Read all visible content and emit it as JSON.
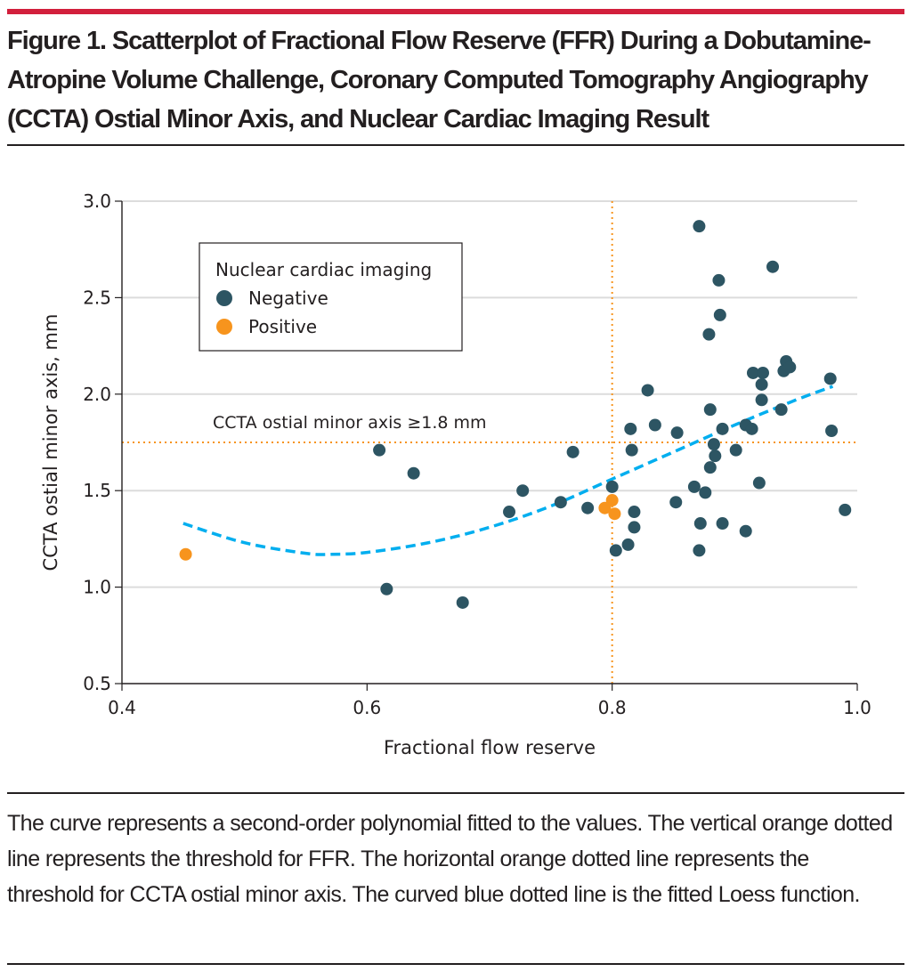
{
  "figure": {
    "title": "Figure 1. Scatterplot of Fractional Flow Reserve (FFR) During a Dobutamine-Atropine Volume Challenge, Coronary Computed Tomography Angiography (CCTA) Ostial Minor Axis, and Nuclear Cardiac Imaging Result",
    "caption": "The curve represents a second-order polynomial fitted to the values. The vertical orange dotted line represents the threshold for FFR. The horizontal orange dotted line represents the threshold for CCTA ostial minor axis. The curved blue dotted line is the fitted Loess function.",
    "accent_color": "#d21f3c"
  },
  "chart_data": {
    "type": "scatter",
    "title": "",
    "xlabel": "Fractional flow reserve",
    "ylabel": "CCTA ostial minor axis, mm",
    "xlim": [
      0.4,
      1.0
    ],
    "ylim": [
      0.5,
      3.0
    ],
    "x_ticks": [
      0.4,
      0.6,
      0.8,
      1.0
    ],
    "x_tick_labels": [
      "0.4",
      "0.6",
      "0.8",
      "1.0"
    ],
    "y_ticks": [
      0.5,
      1.0,
      1.5,
      2.0,
      2.5,
      3.0
    ],
    "y_tick_labels": [
      "0.5",
      "1.0",
      "1.5",
      "2.0",
      "2.5",
      "3.0"
    ],
    "grid": "horizontal",
    "legend": {
      "title": "Nuclear cardiac imaging",
      "placement": "top-left",
      "entries": [
        {
          "name": "Negative",
          "color": "#2d5563"
        },
        {
          "name": "Positive",
          "color": "#f7941d"
        }
      ]
    },
    "reference_lines": [
      {
        "orientation": "vertical",
        "value": 0.8,
        "color": "#f7941d",
        "style": "dotted",
        "label": ""
      },
      {
        "orientation": "horizontal",
        "value": 1.75,
        "color": "#f7941d",
        "style": "dotted",
        "label": "CCTA ostial minor axis ≥1.8 mm"
      }
    ],
    "fit_curve": {
      "name": "Loess",
      "color": "#00aeef",
      "style": "dashed",
      "x": [
        0.45,
        0.5,
        0.55,
        0.57,
        0.6,
        0.65,
        0.7,
        0.75,
        0.8,
        0.85,
        0.9,
        0.95,
        0.98
      ],
      "y": [
        1.33,
        1.23,
        1.175,
        1.17,
        1.18,
        1.23,
        1.31,
        1.42,
        1.56,
        1.7,
        1.84,
        1.97,
        2.04
      ]
    },
    "series": [
      {
        "name": "Negative",
        "color": "#2d5563",
        "points": [
          [
            0.61,
            1.71
          ],
          [
            0.638,
            1.59
          ],
          [
            0.616,
            0.99
          ],
          [
            0.678,
            0.92
          ],
          [
            0.716,
            1.39
          ],
          [
            0.727,
            1.5
          ],
          [
            0.758,
            1.44
          ],
          [
            0.768,
            1.7
          ],
          [
            0.78,
            1.41
          ],
          [
            0.8,
            1.52
          ],
          [
            0.803,
            1.19
          ],
          [
            0.813,
            1.22
          ],
          [
            0.818,
            1.39
          ],
          [
            0.818,
            1.31
          ],
          [
            0.816,
            1.71
          ],
          [
            0.815,
            1.82
          ],
          [
            0.829,
            2.02
          ],
          [
            0.835,
            1.84
          ],
          [
            0.852,
            1.44
          ],
          [
            0.853,
            1.8
          ],
          [
            0.867,
            1.52
          ],
          [
            0.871,
            1.19
          ],
          [
            0.872,
            1.33
          ],
          [
            0.876,
            1.49
          ],
          [
            0.871,
            2.87
          ],
          [
            0.879,
            2.31
          ],
          [
            0.88,
            1.62
          ],
          [
            0.88,
            1.92
          ],
          [
            0.883,
            1.74
          ],
          [
            0.884,
            1.68
          ],
          [
            0.887,
            2.59
          ],
          [
            0.888,
            2.41
          ],
          [
            0.89,
            1.82
          ],
          [
            0.89,
            1.33
          ],
          [
            0.901,
            1.71
          ],
          [
            0.909,
            1.29
          ],
          [
            0.909,
            1.84
          ],
          [
            0.915,
            2.11
          ],
          [
            0.914,
            1.82
          ],
          [
            0.92,
            1.54
          ],
          [
            0.922,
            1.97
          ],
          [
            0.923,
            2.11
          ],
          [
            0.922,
            2.05
          ],
          [
            0.931,
            2.66
          ],
          [
            0.938,
            1.92
          ],
          [
            0.94,
            2.12
          ],
          [
            0.942,
            2.17
          ],
          [
            0.945,
            2.14
          ],
          [
            0.978,
            2.08
          ],
          [
            0.979,
            1.81
          ],
          [
            0.99,
            1.4
          ]
        ]
      },
      {
        "name": "Positive",
        "color": "#f7941d",
        "points": [
          [
            0.452,
            1.17
          ],
          [
            0.794,
            1.41
          ],
          [
            0.8,
            1.45
          ],
          [
            0.802,
            1.38
          ]
        ]
      }
    ]
  }
}
